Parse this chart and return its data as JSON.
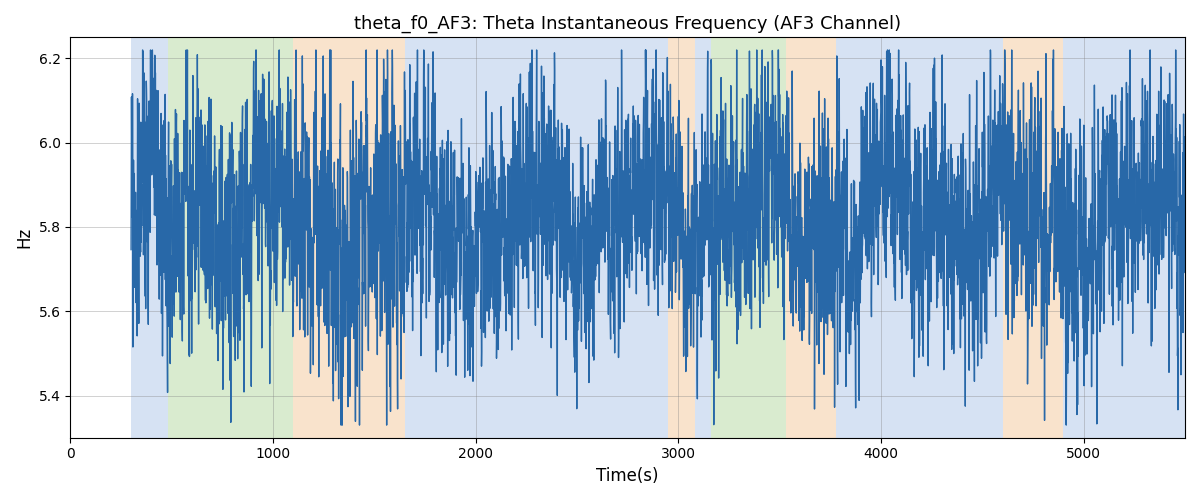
{
  "title": "theta_f0_AF3: Theta Instantaneous Frequency (AF3 Channel)",
  "xlabel": "Time(s)",
  "ylabel": "Hz",
  "ylim": [
    5.3,
    6.25
  ],
  "xlim": [
    0,
    5500
  ],
  "line_color": "#2868a8",
  "line_width": 1.0,
  "bg_bands": [
    {
      "xstart": 300,
      "xend": 480,
      "color": "#aec6e8",
      "alpha": 0.5
    },
    {
      "xstart": 480,
      "xend": 1100,
      "color": "#b5d9a1",
      "alpha": 0.5
    },
    {
      "xstart": 1100,
      "xend": 1650,
      "color": "#f5c99a",
      "alpha": 0.5
    },
    {
      "xstart": 1650,
      "xend": 2950,
      "color": "#aec6e8",
      "alpha": 0.5
    },
    {
      "xstart": 2950,
      "xend": 3080,
      "color": "#f5c99a",
      "alpha": 0.5
    },
    {
      "xstart": 3080,
      "xend": 3160,
      "color": "#aec6e8",
      "alpha": 0.5
    },
    {
      "xstart": 3160,
      "xend": 3530,
      "color": "#b5d9a1",
      "alpha": 0.5
    },
    {
      "xstart": 3530,
      "xend": 3780,
      "color": "#f5c99a",
      "alpha": 0.5
    },
    {
      "xstart": 3780,
      "xend": 4600,
      "color": "#aec6e8",
      "alpha": 0.5
    },
    {
      "xstart": 4600,
      "xend": 4900,
      "color": "#f5c99a",
      "alpha": 0.5
    },
    {
      "xstart": 4900,
      "xend": 5500,
      "color": "#aec6e8",
      "alpha": 0.5
    }
  ],
  "t_start": 300,
  "t_end": 5500,
  "base_freq": 5.82,
  "seed": 123
}
